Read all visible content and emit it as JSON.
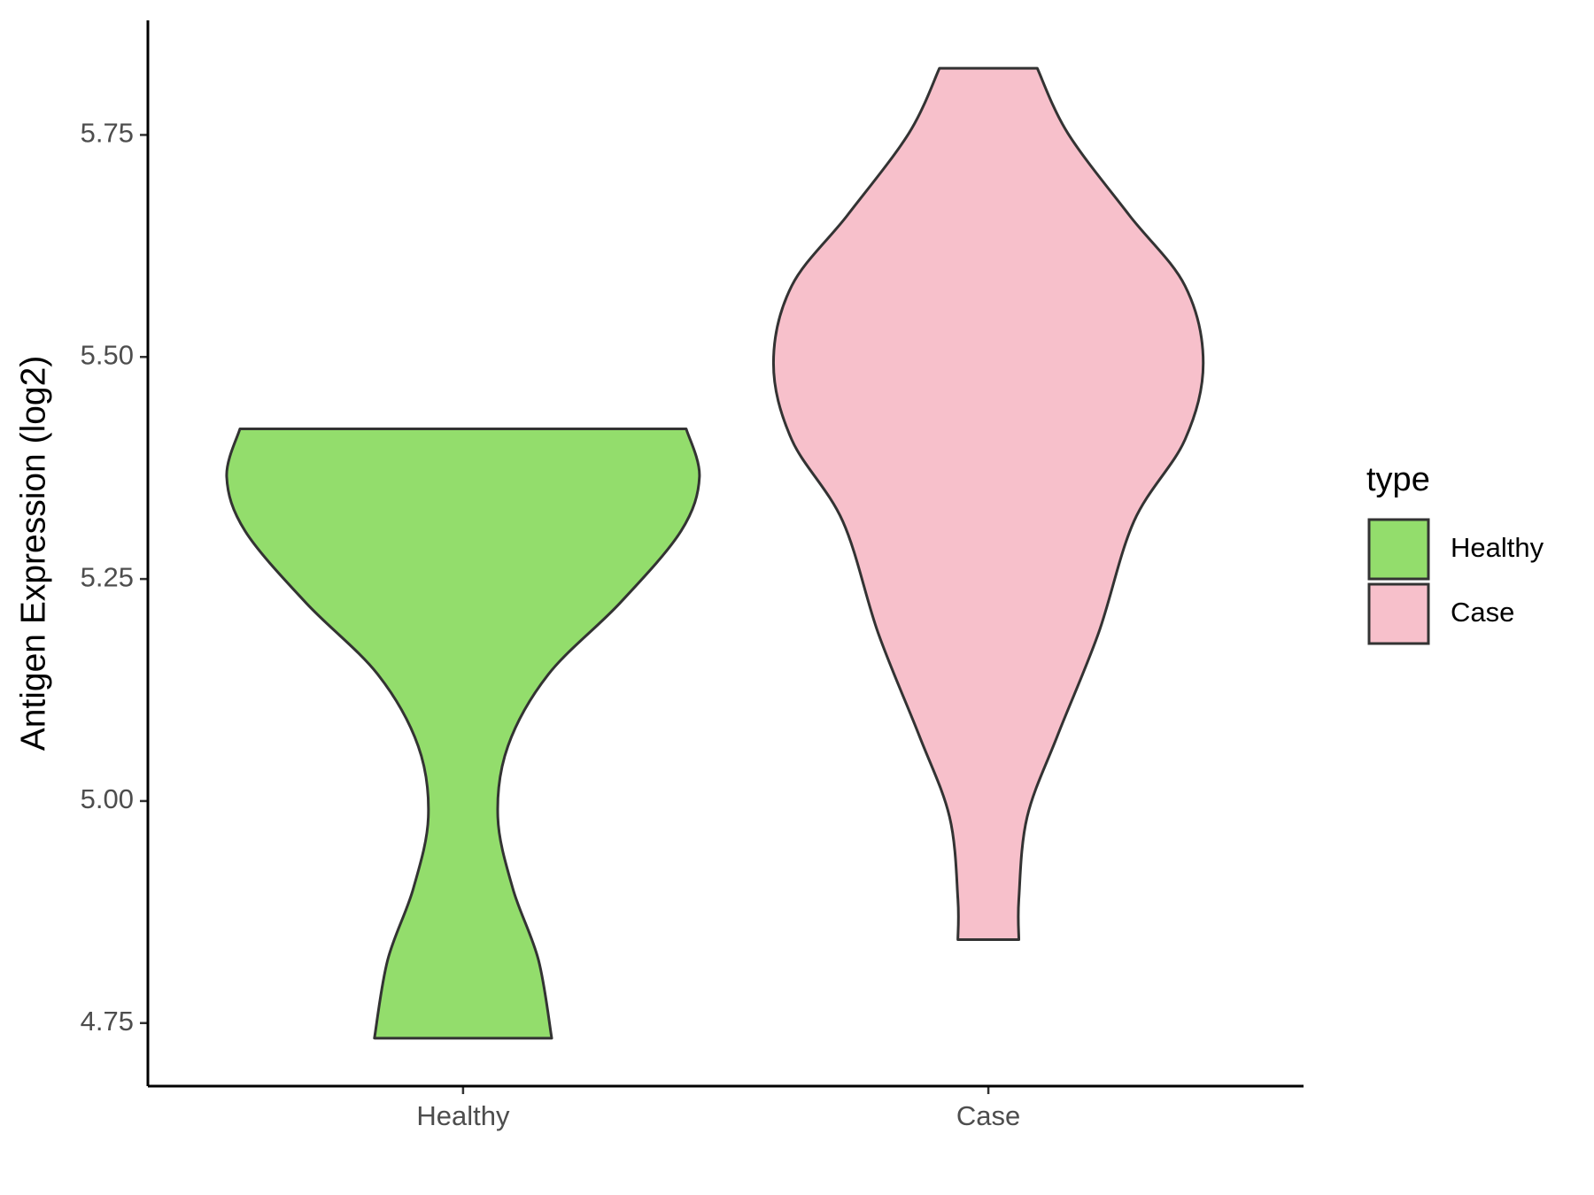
{
  "chart_data": {
    "type": "violin",
    "y_label": "Antigen Expression (log2)",
    "legend_title": "type",
    "legend_position": "right",
    "categories": [
      "Healthy",
      "Case"
    ],
    "ylim": [
      4.679,
      5.879
    ],
    "yticks": [
      {
        "value": 4.75,
        "label": "4.75"
      },
      {
        "value": 5.0,
        "label": "5.00"
      },
      {
        "value": 5.25,
        "label": "5.25"
      },
      {
        "value": 5.5,
        "label": "5.50"
      },
      {
        "value": 5.75,
        "label": "5.75"
      }
    ],
    "series": [
      {
        "name": "Healthy",
        "color": "#93dd6c",
        "y": [
          5.419,
          5.365,
          5.304,
          5.223,
          5.143,
          5.062,
          4.982,
          4.901,
          4.821,
          4.733
        ],
        "width": [
          0.944,
          1,
          0.922,
          0.664,
          0.362,
          0.19,
          0.147,
          0.211,
          0.319,
          0.375
        ]
      },
      {
        "name": "Case",
        "color": "#f7c0cb",
        "y": [
          5.825,
          5.752,
          5.66,
          5.58,
          5.493,
          5.407,
          5.315,
          5.189,
          5.074,
          4.982,
          4.89,
          4.844
        ],
        "width": [
          0.207,
          0.336,
          0.595,
          0.832,
          0.909,
          0.832,
          0.616,
          0.466,
          0.293,
          0.164,
          0.129,
          0.129
        ]
      }
    ]
  }
}
